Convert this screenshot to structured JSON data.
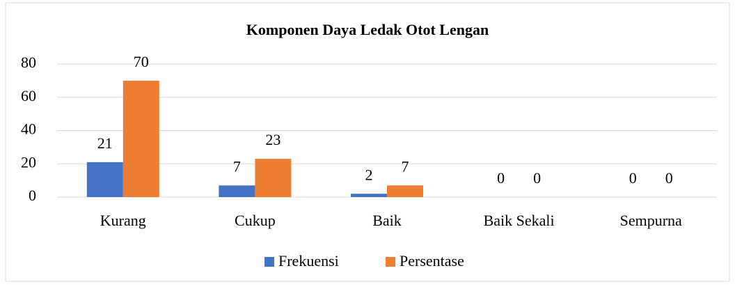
{
  "chart_data": {
    "type": "bar",
    "title": "Komponen Daya Ledak Otot Lengan",
    "categories": [
      "Kurang",
      "Cukup",
      "Baik",
      "Baik Sekali",
      "Sempurna"
    ],
    "series": [
      {
        "name": "Frekuensi",
        "color": "#4472c4",
        "values": [
          21,
          7,
          2,
          0,
          0
        ]
      },
      {
        "name": "Persentase",
        "color": "#ed7d31",
        "values": [
          70,
          23,
          7,
          0,
          0
        ]
      }
    ],
    "ylim": [
      0,
      80
    ],
    "yticks": [
      0,
      20,
      40,
      60,
      80
    ],
    "grid": true,
    "legend": "bottom"
  }
}
